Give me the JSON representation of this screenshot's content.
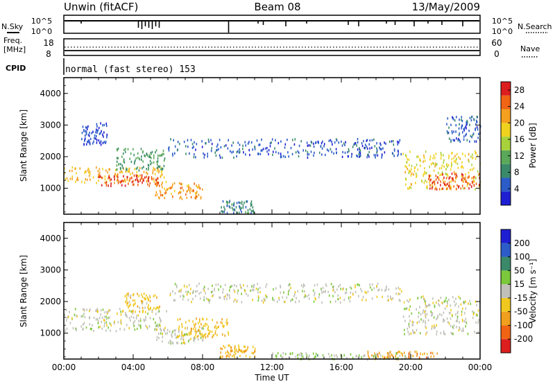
{
  "header": {
    "radar": "Unwin (fitACF)",
    "beam": "Beam 08",
    "date": "13/May/2009"
  },
  "labels": {
    "nsky": "N.Sky",
    "nsearch": "N.Search",
    "freq": "Freq.",
    "mhz": "[MHz]",
    "nave": "Nave",
    "cpid": "CPID",
    "cpid_value": "normal (fast stereo) 153",
    "tick_1e5": "10^5",
    "tick_1e0": "10^0",
    "freq_hi": "18",
    "freq_lo": "8",
    "nave_hi": "60",
    "nave_lo": "0"
  },
  "colors": {
    "power": [
      "#1e1ed2",
      "#2c5cc8",
      "#3a8a6a",
      "#5aa85a",
      "#a8d23c",
      "#f0d21e",
      "#f5a01e",
      "#f06414",
      "#dc1e1e"
    ],
    "velocity": [
      "#1e1ed2",
      "#2c5cc8",
      "#3a8a6a",
      "#7cc83c",
      "#c0c0b8",
      "#f0c81e",
      "#f0a01e",
      "#f06414",
      "#dc1e1e"
    ]
  },
  "chart_data": [
    {
      "type": "heatmap",
      "title": "Power",
      "xlabel": "Time UT",
      "ylabel": "Slant Range [km]",
      "xlim": [
        "00:00",
        "24:00"
      ],
      "ylim": [
        180,
        4500
      ],
      "xticks": [
        "00:00",
        "04:00",
        "08:00",
        "12:00",
        "16:00",
        "20:00",
        "00:00"
      ],
      "yticks": [
        1000,
        2000,
        3000,
        4000
      ],
      "colorbar_label": "Power [dB]",
      "colorbar_ticks": [
        "4",
        "8",
        "12",
        "16",
        "20",
        "24",
        "28"
      ],
      "colorbar_range": [
        0,
        30
      ],
      "regions": [
        {
          "t": [
            0.0,
            5.9
          ],
          "r": [
            1200,
            1700
          ],
          "value": 20
        },
        {
          "t": [
            2.0,
            5.5
          ],
          "r": [
            1100,
            1450
          ],
          "value": 27
        },
        {
          "t": [
            3.0,
            5.8
          ],
          "r": [
            1600,
            2300
          ],
          "value": 10
        },
        {
          "t": [
            5.2,
            8.0
          ],
          "r": [
            700,
            1200
          ],
          "value": 22
        },
        {
          "t": [
            6.0,
            19.5
          ],
          "r": [
            2000,
            2600
          ],
          "value": 5
        },
        {
          "t": [
            1.0,
            2.5
          ],
          "r": [
            2400,
            3100
          ],
          "value": 4
        },
        {
          "t": [
            19.5,
            24.0
          ],
          "r": [
            1000,
            2200
          ],
          "value": 18
        },
        {
          "t": [
            21.0,
            24.0
          ],
          "r": [
            1000,
            1500
          ],
          "value": 26
        },
        {
          "t": [
            9.0,
            11.0
          ],
          "r": [
            250,
            650
          ],
          "value": 8
        },
        {
          "t": [
            22.0,
            24.0
          ],
          "r": [
            2500,
            3300
          ],
          "value": 5
        }
      ]
    },
    {
      "type": "heatmap",
      "title": "Velocity",
      "xlabel": "Time UT",
      "ylabel": "Slant Range [km]",
      "xlim": [
        "00:00",
        "24:00"
      ],
      "ylim": [
        180,
        4500
      ],
      "xticks": [
        "00:00",
        "04:00",
        "08:00",
        "12:00",
        "16:00",
        "20:00",
        "00:00"
      ],
      "yticks": [
        1000,
        2000,
        3000,
        4000
      ],
      "colorbar_label": "Velocity [m s^-1]",
      "colorbar_ticks": [
        "200",
        "100",
        "50",
        "15",
        "-15",
        "-50",
        "-100",
        "-200"
      ],
      "colorbar_range": [
        -250,
        250
      ],
      "regions": [
        {
          "t": [
            0.0,
            5.9
          ],
          "r": [
            1100,
            1800
          ],
          "value": 0
        },
        {
          "t": [
            3.5,
            5.5
          ],
          "r": [
            1700,
            2300
          ],
          "value": -60
        },
        {
          "t": [
            5.2,
            8.0
          ],
          "r": [
            700,
            1200
          ],
          "value": 0
        },
        {
          "t": [
            6.5,
            9.5
          ],
          "r": [
            900,
            1500
          ],
          "value": -70
        },
        {
          "t": [
            9.0,
            11.0
          ],
          "r": [
            250,
            650
          ],
          "value": -80
        },
        {
          "t": [
            6.0,
            19.5
          ],
          "r": [
            2000,
            2600
          ],
          "value": 0
        },
        {
          "t": [
            17.5,
            21.5
          ],
          "r": [
            200,
            450
          ],
          "value": -110
        },
        {
          "t": [
            19.5,
            24.0
          ],
          "r": [
            1000,
            2200
          ],
          "value": 0
        },
        {
          "t": [
            12.0,
            20.0
          ],
          "r": [
            200,
            400
          ],
          "value": 40
        }
      ]
    }
  ],
  "axis": {
    "time_label": "Time UT",
    "xticks": [
      "00:00",
      "04:00",
      "08:00",
      "12:00",
      "16:00",
      "20:00",
      "00:00"
    ],
    "y_label": "Slant Range [km]",
    "yticks": [
      "1000",
      "2000",
      "3000",
      "4000"
    ],
    "power_label": "Power [dB]",
    "power_ticks": [
      "4",
      "8",
      "12",
      "16",
      "20",
      "24",
      "28"
    ],
    "velocity_label": "Velocity [m s⁻¹]",
    "velocity_ticks": [
      "200",
      "100",
      "50",
      "15",
      "-15",
      "-50",
      "-100",
      "-200"
    ]
  }
}
